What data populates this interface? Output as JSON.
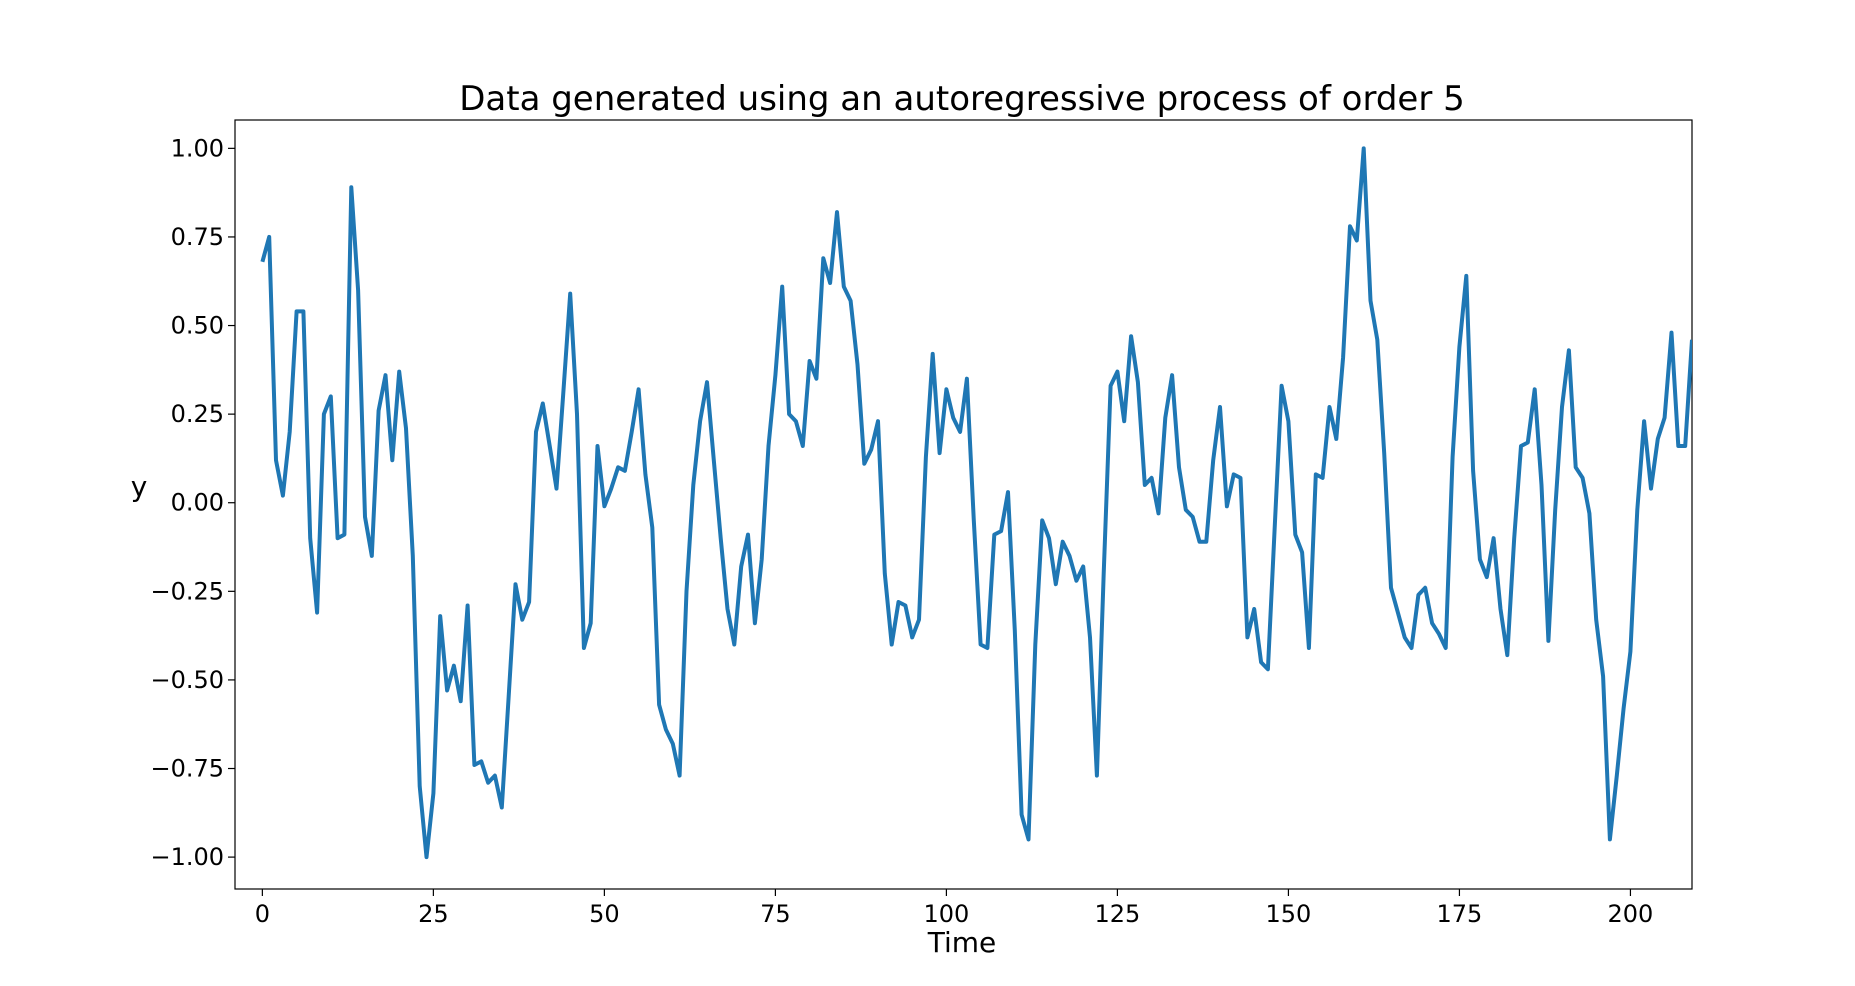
{
  "chart_data": {
    "type": "line",
    "title": "Data generated using an autoregressive process of order 5",
    "xlabel": "Time",
    "ylabel": "y",
    "xlim": [
      -4,
      209
    ],
    "ylim": [
      -1.09,
      1.08
    ],
    "xticks": [
      0,
      25,
      50,
      75,
      100,
      125,
      150,
      175,
      200
    ],
    "xtick_labels": [
      "0",
      "25",
      "50",
      "75",
      "100",
      "125",
      "150",
      "175",
      "200"
    ],
    "yticks": [
      1.0,
      0.75,
      0.5,
      0.25,
      0.0,
      -0.25,
      -0.5,
      -0.75,
      -1.0
    ],
    "ytick_labels": [
      "1.00",
      "0.75",
      "0.50",
      "0.25",
      "0.00",
      "−0.25",
      "−0.50",
      "−0.75",
      "−1.00"
    ],
    "grid": false,
    "line_color": "#1f77b4",
    "series": [
      {
        "x": [
          0,
          1,
          2,
          3,
          4,
          5,
          6,
          7,
          8,
          9,
          10,
          11,
          12,
          13,
          14,
          15,
          16,
          17,
          18,
          19,
          20,
          21,
          22,
          23,
          24,
          25,
          26,
          27,
          28,
          29,
          30,
          31,
          32,
          33,
          34,
          35,
          36,
          37,
          38,
          39,
          40,
          41,
          42,
          43,
          44,
          45,
          46,
          47,
          48,
          49,
          50,
          51,
          52,
          53,
          54,
          55,
          56,
          57,
          58,
          59,
          60,
          61,
          62,
          63,
          64,
          65,
          66,
          67,
          68,
          69,
          70,
          71,
          72,
          73,
          74,
          75,
          76,
          77,
          78,
          79,
          80,
          81,
          82,
          83,
          84,
          85,
          86,
          87,
          88,
          89,
          90,
          91,
          92,
          93,
          94,
          95,
          96,
          97,
          98,
          99,
          100,
          101,
          102,
          103,
          104,
          105,
          106,
          107,
          108,
          109,
          110,
          111,
          112,
          113,
          114,
          115,
          116,
          117,
          118,
          119,
          120,
          121,
          122,
          123,
          124,
          125,
          126,
          127,
          128,
          129,
          130,
          131,
          132,
          133,
          134,
          135,
          136,
          137,
          138,
          139,
          140,
          141,
          142,
          143,
          144,
          145,
          146,
          147,
          148,
          149,
          150,
          151,
          152,
          153,
          154,
          155,
          156,
          157,
          158,
          159,
          160,
          161,
          162,
          163,
          164,
          165,
          166,
          167,
          168,
          169,
          170,
          171,
          172,
          173,
          174,
          175,
          176,
          177,
          178,
          179,
          180,
          181,
          182,
          183,
          184,
          185,
          186,
          187,
          188,
          189,
          190,
          191,
          192,
          193,
          194,
          195,
          196,
          197,
          198,
          199,
          200,
          201,
          202,
          203,
          204,
          205,
          206,
          207,
          208,
          209
        ],
        "values": [
          0.68,
          0.75,
          0.12,
          0.02,
          0.2,
          0.54,
          0.54,
          -0.1,
          -0.31,
          0.25,
          0.3,
          -0.1,
          -0.09,
          0.89,
          0.6,
          -0.04,
          -0.15,
          0.26,
          0.36,
          0.12,
          0.37,
          0.21,
          -0.15,
          -0.8,
          -1.0,
          -0.82,
          -0.32,
          -0.53,
          -0.46,
          -0.56,
          -0.29,
          -0.74,
          -0.73,
          -0.79,
          -0.77,
          -0.86,
          -0.55,
          -0.23,
          -0.33,
          -0.28,
          0.2,
          0.28,
          0.16,
          0.04,
          0.31,
          0.59,
          0.25,
          -0.41,
          -0.34,
          0.16,
          -0.01,
          0.04,
          0.1,
          0.09,
          0.2,
          0.32,
          0.08,
          -0.07,
          -0.57,
          -0.64,
          -0.68,
          -0.77,
          -0.25,
          0.05,
          0.23,
          0.34,
          0.12,
          -0.1,
          -0.3,
          -0.4,
          -0.18,
          -0.09,
          -0.34,
          -0.16,
          0.16,
          0.36,
          0.61,
          0.25,
          0.23,
          0.16,
          0.4,
          0.35,
          0.69,
          0.62,
          0.82,
          0.61,
          0.57,
          0.39,
          0.11,
          0.15,
          0.23,
          -0.2,
          -0.4,
          -0.28,
          -0.29,
          -0.38,
          -0.33,
          0.13,
          0.42,
          0.14,
          0.32,
          0.24,
          0.2,
          0.35,
          -0.05,
          -0.4,
          -0.41,
          -0.09,
          -0.08,
          0.03,
          -0.36,
          -0.88,
          -0.95,
          -0.4,
          -0.05,
          -0.1,
          -0.23,
          -0.11,
          -0.15,
          -0.22,
          -0.18,
          -0.38,
          -0.77,
          -0.2,
          0.33,
          0.37,
          0.23,
          0.47,
          0.34,
          0.05,
          0.07,
          -0.03,
          0.24,
          0.36,
          0.1,
          -0.02,
          -0.04,
          -0.11,
          -0.11,
          0.12,
          0.27,
          -0.01,
          0.08,
          0.07,
          -0.38,
          -0.3,
          -0.45,
          -0.47,
          -0.07,
          0.33,
          0.23,
          -0.09,
          -0.14,
          -0.41,
          0.08,
          0.07,
          0.27,
          0.18,
          0.41,
          0.78,
          0.74,
          1.0,
          0.57,
          0.46,
          0.14,
          -0.24,
          -0.31,
          -0.38,
          -0.41,
          -0.26,
          -0.24,
          -0.34,
          -0.37,
          -0.41,
          0.13,
          0.44,
          0.64,
          0.09,
          -0.16,
          -0.21,
          -0.1,
          -0.3,
          -0.43,
          -0.1,
          0.16,
          0.17,
          0.32,
          0.05,
          -0.39,
          -0.02,
          0.27,
          0.43,
          0.1,
          0.07,
          -0.03,
          -0.33,
          -0.49,
          -0.95,
          -0.77,
          -0.58,
          -0.42,
          -0.02,
          0.23,
          0.04,
          0.18,
          0.24,
          0.48,
          0.16,
          0.16,
          0.46
        ]
      }
    ]
  }
}
